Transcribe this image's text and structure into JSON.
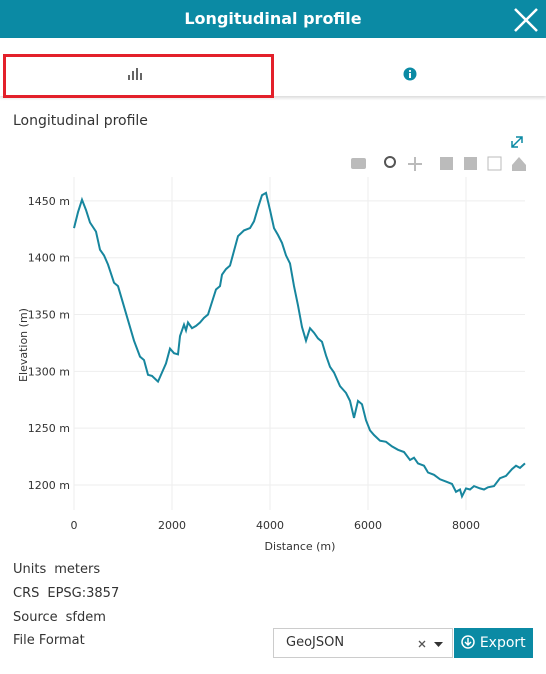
{
  "header": {
    "title": "Longitudinal profile"
  },
  "section_title": "Longitudinal profile",
  "chart_data": {
    "type": "line",
    "x_label": "Distance (m)",
    "y_label": "Elevation (m)",
    "x": [
      0,
      82,
      163,
      245,
      327,
      449,
      531,
      612,
      694,
      816,
      898,
      980,
      1102,
      1224,
      1347,
      1429,
      1510,
      1592,
      1714,
      1796,
      1878,
      1959,
      2041,
      2122,
      2163,
      2245,
      2286,
      2327,
      2408,
      2490,
      2571,
      2653,
      2735,
      2816,
      2898,
      2980,
      3020,
      3102,
      3184,
      3265,
      3347,
      3469,
      3592,
      3673,
      3755,
      3837,
      3918,
      4000,
      4082,
      4163,
      4245,
      4327,
      4408,
      4490,
      4571,
      4653,
      4735,
      4816,
      4898,
      4980,
      5061,
      5143,
      5224,
      5306,
      5429,
      5551,
      5633,
      5714,
      5796,
      5878,
      5959,
      6041,
      6122,
      6245,
      6367,
      6490,
      6612,
      6735,
      6857,
      6939,
      7020,
      7143,
      7224,
      7347,
      7469,
      7592,
      7714,
      7796,
      7878,
      7918,
      8000,
      8082,
      8163,
      8286,
      8367,
      8449,
      8571,
      8694,
      8816,
      8939,
      9020,
      9102,
      9204
    ],
    "values": [
      1426,
      1440,
      1451,
      1442,
      1431,
      1423,
      1407,
      1402,
      1394,
      1378,
      1375,
      1363,
      1345,
      1327,
      1313,
      1310,
      1297,
      1296,
      1291,
      1299,
      1307,
      1320,
      1316,
      1315,
      1331,
      1341,
      1336,
      1343,
      1338,
      1340,
      1343,
      1347,
      1350,
      1361,
      1372,
      1375,
      1385,
      1390,
      1393,
      1406,
      1419,
      1424,
      1426,
      1432,
      1444,
      1455,
      1457,
      1442,
      1426,
      1420,
      1413,
      1402,
      1395,
      1375,
      1358,
      1339,
      1327,
      1338,
      1334,
      1329,
      1326,
      1314,
      1304,
      1299,
      1287,
      1281,
      1274,
      1259,
      1274,
      1271,
      1257,
      1248,
      1244,
      1239,
      1238,
      1234,
      1231,
      1229,
      1222,
      1224,
      1219,
      1217,
      1211,
      1209,
      1205,
      1203,
      1201,
      1194,
      1196,
      1190,
      1197,
      1196,
      1199,
      1197,
      1196,
      1198,
      1199,
      1206,
      1208,
      1214,
      1217,
      1215,
      1219
    ],
    "color": "#17869e",
    "xlim": [
      0,
      9204
    ],
    "ylim": [
      1178,
      1471
    ],
    "xticks": [
      0,
      2000,
      4000,
      6000,
      8000
    ],
    "yticks": [
      {
        "value": 1200,
        "label": "1200 m"
      },
      {
        "value": 1250,
        "label": "1250 m"
      },
      {
        "value": 1300,
        "label": "1300 m"
      },
      {
        "value": 1350,
        "label": "1350 m"
      },
      {
        "value": 1400,
        "label": "1400 m"
      },
      {
        "value": 1450,
        "label": "1450 m"
      }
    ],
    "grid": true
  },
  "info": [
    {
      "label": "Units",
      "value": "meters"
    },
    {
      "label": "CRS",
      "value": "EPSG:3857"
    },
    {
      "label": "Source",
      "value": "sfdem"
    }
  ],
  "file_format": {
    "label": "File Format",
    "selected": "GeoJSON",
    "button": "Export"
  }
}
